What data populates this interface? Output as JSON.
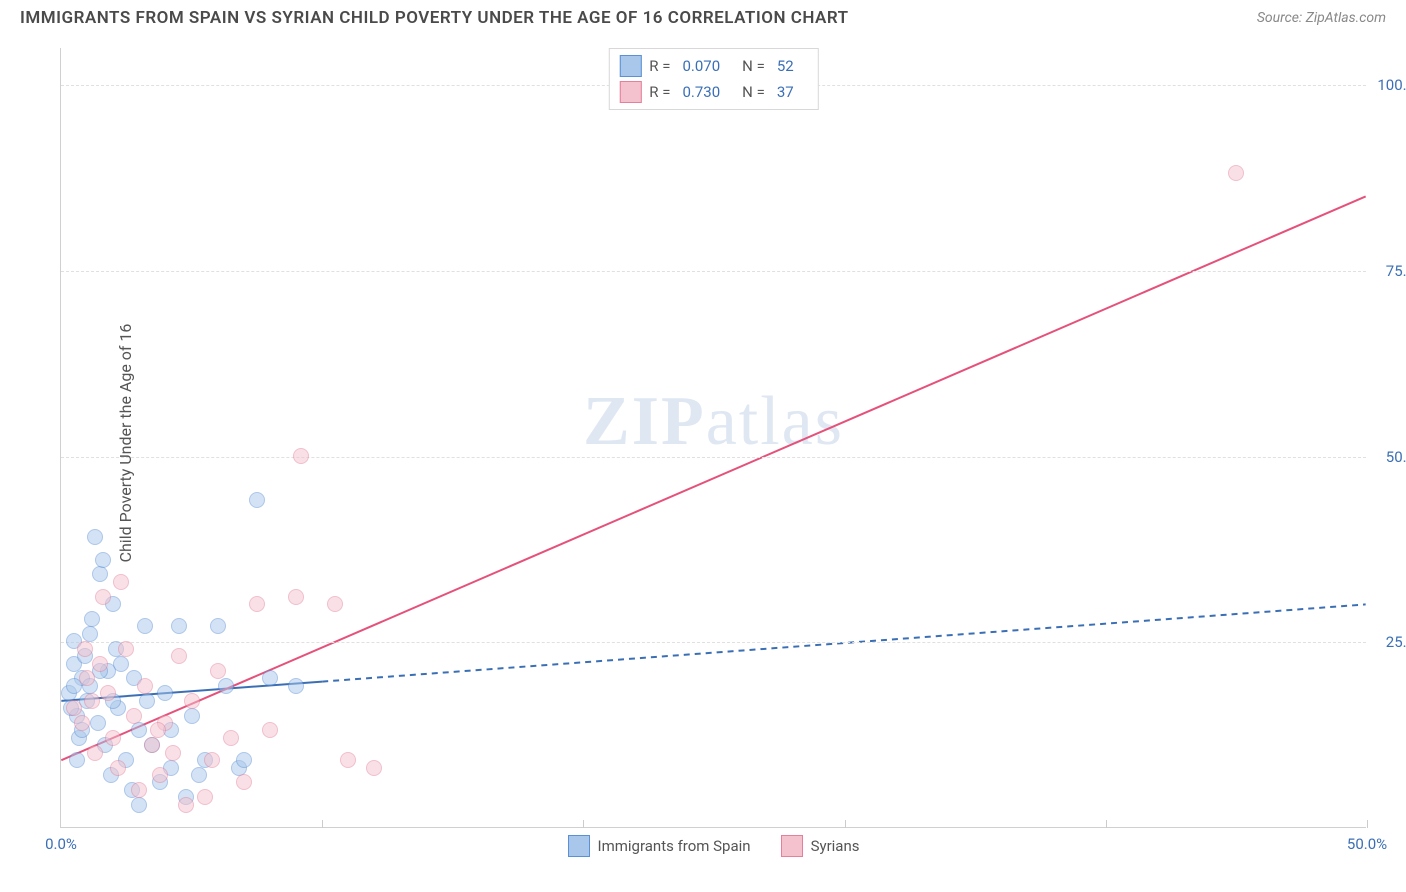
{
  "header": {
    "title": "IMMIGRANTS FROM SPAIN VS SYRIAN CHILD POVERTY UNDER THE AGE OF 16 CORRELATION CHART",
    "source": "Source: ZipAtlas.com"
  },
  "watermark": {
    "part1": "ZIP",
    "part2": "atlas"
  },
  "chart": {
    "type": "scatter",
    "ylabel": "Child Poverty Under the Age of 16",
    "xlim": [
      0,
      50
    ],
    "ylim": [
      0,
      105
    ],
    "xticks": [
      0,
      10,
      20,
      30,
      40,
      50
    ],
    "yticks": [
      25,
      50,
      75,
      100
    ],
    "xtick_labels": {
      "0": "0.0%",
      "50": "50.0%"
    },
    "ytick_labels": {
      "25": "25.0%",
      "50": "50.0%",
      "75": "75.0%",
      "100": "100.0%"
    },
    "grid_color": "#e0e0e0",
    "background_color": "#ffffff",
    "marker_radius": 8,
    "marker_opacity": 0.5,
    "series": [
      {
        "name": "Immigrants from Spain",
        "color_fill": "#a9c7eb",
        "color_stroke": "#5b8fd6",
        "R": "0.070",
        "N": "52",
        "trend": {
          "x1": 0,
          "y1": 17,
          "x2": 50,
          "y2": 30,
          "color": "#3b6fb5",
          "width": 2,
          "solid_until_x": 10
        },
        "points": [
          [
            0.3,
            18
          ],
          [
            0.5,
            22
          ],
          [
            0.6,
            15
          ],
          [
            0.8,
            20
          ],
          [
            0.5,
            25
          ],
          [
            1.0,
            17
          ],
          [
            1.2,
            28
          ],
          [
            0.7,
            12
          ],
          [
            1.5,
            34
          ],
          [
            1.6,
            36
          ],
          [
            1.3,
            39
          ],
          [
            1.8,
            21
          ],
          [
            2.0,
            30
          ],
          [
            1.4,
            14
          ],
          [
            2.2,
            16
          ],
          [
            2.5,
            9
          ],
          [
            2.3,
            22
          ],
          [
            1.1,
            19
          ],
          [
            0.9,
            23
          ],
          [
            3.0,
            13
          ],
          [
            3.2,
            27
          ],
          [
            3.5,
            11
          ],
          [
            3.8,
            6
          ],
          [
            4.0,
            18
          ],
          [
            4.2,
            8
          ],
          [
            4.5,
            27
          ],
          [
            4.8,
            4
          ],
          [
            5.0,
            15
          ],
          [
            5.3,
            7
          ],
          [
            2.0,
            17
          ],
          [
            1.7,
            11
          ],
          [
            0.4,
            16
          ],
          [
            0.6,
            9
          ],
          [
            6.0,
            27
          ],
          [
            6.3,
            19
          ],
          [
            6.8,
            8
          ],
          [
            7.0,
            9
          ],
          [
            7.5,
            44
          ],
          [
            8.0,
            20
          ],
          [
            9.0,
            19
          ],
          [
            3.0,
            3
          ],
          [
            2.7,
            5
          ],
          [
            1.9,
            7
          ],
          [
            0.8,
            13
          ],
          [
            1.1,
            26
          ],
          [
            4.2,
            13
          ],
          [
            5.5,
            9
          ],
          [
            2.8,
            20
          ],
          [
            0.5,
            19
          ],
          [
            1.5,
            21
          ],
          [
            2.1,
            24
          ],
          [
            3.3,
            17
          ]
        ]
      },
      {
        "name": "Syrians",
        "color_fill": "#f4c2ce",
        "color_stroke": "#e57f9a",
        "R": "0.730",
        "N": "37",
        "trend": {
          "x1": 0,
          "y1": 9,
          "x2": 50,
          "y2": 85,
          "color": "#e5517a",
          "width": 2,
          "solid_until_x": 50
        },
        "points": [
          [
            0.5,
            16
          ],
          [
            0.8,
            14
          ],
          [
            1.0,
            20
          ],
          [
            1.3,
            10
          ],
          [
            1.5,
            22
          ],
          [
            1.8,
            18
          ],
          [
            2.0,
            12
          ],
          [
            2.2,
            8
          ],
          [
            2.5,
            24
          ],
          [
            2.8,
            15
          ],
          [
            3.0,
            5
          ],
          [
            3.2,
            19
          ],
          [
            3.5,
            11
          ],
          [
            3.8,
            7
          ],
          [
            4.0,
            14
          ],
          [
            4.5,
            23
          ],
          [
            4.8,
            3
          ],
          [
            5.0,
            17
          ],
          [
            5.5,
            4
          ],
          [
            5.8,
            9
          ],
          [
            6.0,
            21
          ],
          [
            6.5,
            12
          ],
          [
            7.0,
            6
          ],
          [
            7.5,
            30
          ],
          [
            8.0,
            13
          ],
          [
            9.0,
            31
          ],
          [
            9.2,
            50
          ],
          [
            10.5,
            30
          ],
          [
            11.0,
            9
          ],
          [
            12.0,
            8
          ],
          [
            2.3,
            33
          ],
          [
            1.6,
            31
          ],
          [
            0.9,
            24
          ],
          [
            3.7,
            13
          ],
          [
            4.3,
            10
          ],
          [
            45.0,
            88
          ],
          [
            1.2,
            17
          ]
        ]
      }
    ],
    "bottom_legend": [
      {
        "label": "Immigrants from Spain",
        "fill": "#a9c7eb",
        "stroke": "#5b8fd6"
      },
      {
        "label": "Syrians",
        "fill": "#f4c2ce",
        "stroke": "#e57f9a"
      }
    ]
  }
}
